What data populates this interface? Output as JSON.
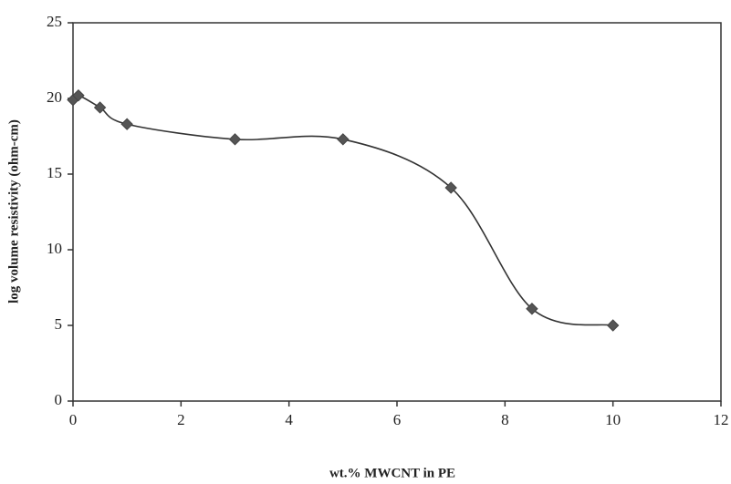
{
  "chart_data": {
    "type": "line",
    "x_label": "wt.% MWCNT in PE",
    "y_label": "log volume resistivity (ohm-cm)",
    "series": [
      {
        "color": "#333333",
        "x": [
          0,
          0.1,
          0.5,
          1,
          3,
          5,
          7,
          8.5,
          10
        ],
        "values": [
          19.9,
          20.2,
          19.4,
          18.3,
          17.3,
          17.3,
          14.1,
          6.1,
          5.0
        ]
      }
    ],
    "smooth": true,
    "xlim": [
      0,
      12
    ],
    "xticks": [
      0,
      2,
      4,
      6,
      8,
      10,
      12
    ],
    "ylim": [
      0,
      25
    ],
    "yticks": [
      0,
      5,
      10,
      15,
      20,
      25
    ]
  }
}
